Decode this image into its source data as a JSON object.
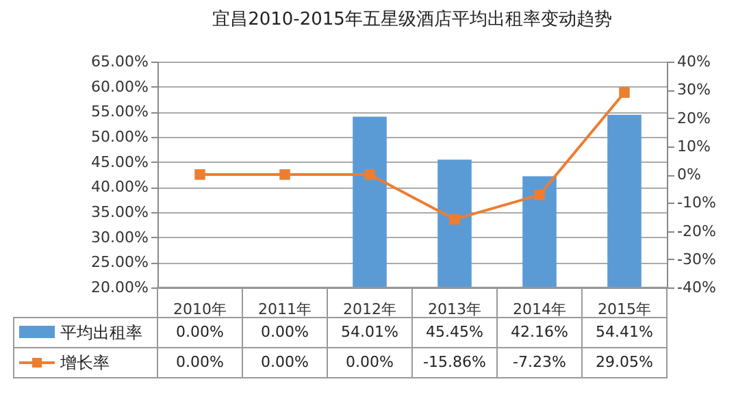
{
  "chart_data": {
    "type": "bar",
    "title": "宜昌2010-2015年五星级酒店平均出租率变动趋势",
    "categories": [
      "2010年",
      "2011年",
      "2012年",
      "2013年",
      "2014年",
      "2015年"
    ],
    "series": [
      {
        "name": "平均出租率",
        "color": "#5b9bd5",
        "values": [
          null,
          null,
          54.01,
          45.45,
          42.16,
          54.41
        ],
        "value_labels": [
          "0.00%",
          "0.00%",
          "54.01%",
          "45.45%",
          "42.16%",
          "54.41%"
        ]
      },
      {
        "name": "增长率",
        "type": "line",
        "axis": "y2",
        "color": "#ed7d31",
        "marker": "square",
        "values": [
          0,
          0,
          0,
          -15.86,
          -7.23,
          29.05
        ],
        "value_labels": [
          "0.00%",
          "0.00%",
          "0.00%",
          "-15.86%",
          "-7.23%",
          "29.05%"
        ]
      }
    ],
    "ylim": [
      20,
      65
    ],
    "yticks": [
      {
        "value": 20,
        "label": "20.00%"
      },
      {
        "value": 25,
        "label": "25.00%"
      },
      {
        "value": 30,
        "label": "30.00%"
      },
      {
        "value": 35,
        "label": "35.00%"
      },
      {
        "value": 40,
        "label": "40.00%"
      },
      {
        "value": 45,
        "label": "45.00%"
      },
      {
        "value": 50,
        "label": "50.00%"
      },
      {
        "value": 55,
        "label": "55.00%"
      },
      {
        "value": 60,
        "label": "60.00%"
      },
      {
        "value": 65,
        "label": "65.00%"
      }
    ],
    "y2lim": [
      -40,
      40
    ],
    "y2ticks": [
      {
        "value": -40,
        "label": "-40%"
      },
      {
        "value": -30,
        "label": "-30%"
      },
      {
        "value": -20,
        "label": "-20%"
      },
      {
        "value": -10,
        "label": "-10%"
      },
      {
        "value": 0,
        "label": "0%"
      },
      {
        "value": 10,
        "label": "10%"
      },
      {
        "value": 20,
        "label": "20%"
      },
      {
        "value": 30,
        "label": "30%"
      },
      {
        "value": 40,
        "label": "40%"
      }
    ],
    "grid": "y",
    "legend": "bottom",
    "line_style": "solid"
  }
}
